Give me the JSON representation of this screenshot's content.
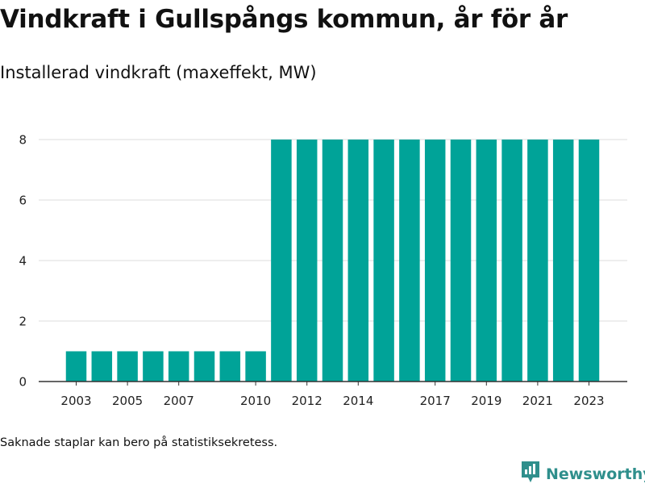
{
  "title": "Vindkraft i Gullspångs kommun, år för år",
  "subtitle": "Installerad vindkraft (maxeffekt, MW)",
  "footnote": "Saknade staplar kan bero på statistiksekretess.",
  "brand": {
    "name": "Newsworthy",
    "icon": "newsworthy-logo-icon",
    "color": "#2f8f8c"
  },
  "colors": {
    "bar": "#00a398",
    "grid": "#dddddd",
    "axis": "#333333"
  },
  "chart_data": {
    "type": "bar",
    "title": "Vindkraft i Gullspångs kommun, år för år",
    "subtitle": "Installerad vindkraft (maxeffekt, MW)",
    "xlabel": "",
    "ylabel": "",
    "categories": [
      2003,
      2004,
      2005,
      2006,
      2007,
      2008,
      2009,
      2010,
      2011,
      2012,
      2013,
      2014,
      2015,
      2016,
      2017,
      2018,
      2019,
      2020,
      2021,
      2022,
      2023
    ],
    "values": [
      1,
      1,
      1,
      1,
      1,
      1,
      1,
      1,
      8,
      8,
      8,
      8,
      8,
      8,
      8,
      8,
      8,
      8,
      8,
      8,
      8
    ],
    "x_tick_labels": [
      "2003",
      "2005",
      "2007",
      "2010",
      "2012",
      "2014",
      "2017",
      "2019",
      "2021",
      "2023"
    ],
    "y_ticks": [
      0,
      2,
      4,
      6,
      8
    ],
    "ylim": [
      0,
      8
    ],
    "grid": true,
    "legend": "none"
  }
}
